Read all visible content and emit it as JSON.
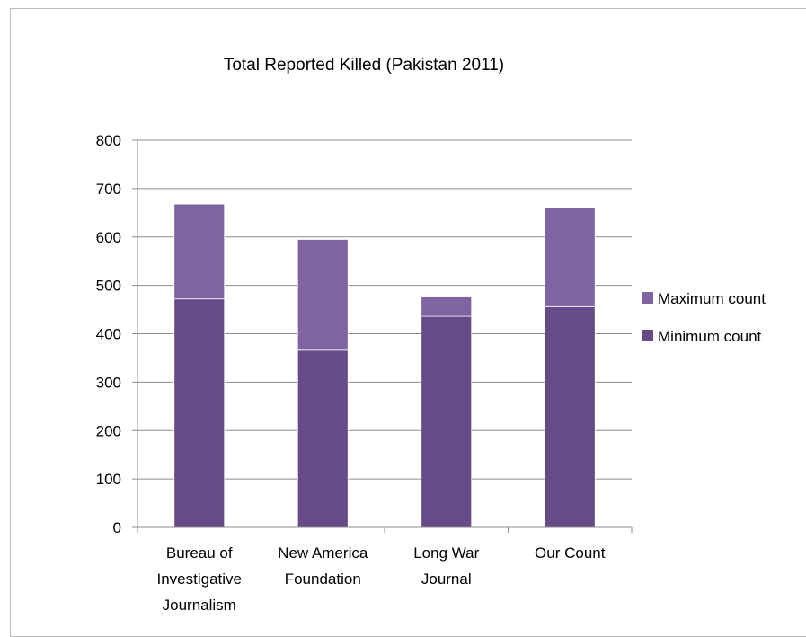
{
  "chart_data": {
    "type": "bar",
    "stacked": true,
    "title": "Total Reported Killed (Pakistan 2011)",
    "xlabel": "",
    "ylabel": "",
    "ylim": [
      0,
      800
    ],
    "yticks": [
      0,
      100,
      200,
      300,
      400,
      500,
      600,
      700,
      800
    ],
    "grid": true,
    "legend_position": "right",
    "categories": [
      [
        "Bureau of",
        "Investigative",
        "Journalism"
      ],
      [
        "New America",
        "Foundation"
      ],
      [
        "Long War",
        "Journal"
      ],
      [
        "Our Count"
      ]
    ],
    "series": [
      {
        "name": "Minimum count",
        "color": "#664b86",
        "values": [
          472,
          366,
          436,
          456
        ]
      },
      {
        "name": "Maximum count",
        "color": "#8064a2",
        "values": [
          196,
          229,
          40,
          204
        ]
      }
    ],
    "legend_order": [
      "Maximum count",
      "Minimum count"
    ]
  }
}
